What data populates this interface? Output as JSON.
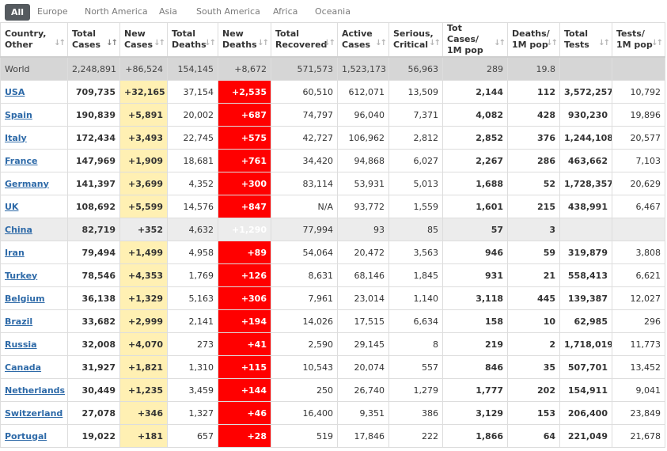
{
  "tabs": [
    "All",
    "Europe",
    "North America",
    "Asia",
    "South America",
    "Africa",
    "Oceania"
  ],
  "columns": [
    "Country,\nOther",
    "Total\nCases",
    "New\nCases",
    "Total\nDeaths",
    "New\nDeaths",
    "Total Recovered",
    "Active\nCases",
    "Serious,\nCritical",
    "Tot Cases/\n1M pop",
    "Deaths/\n1M pop",
    "Total\nTests",
    "Tests/\n1M pop"
  ],
  "sort_icon": "sort-arrows",
  "colors": {
    "new_cases_bg": "#fff0b3",
    "new_deaths_bg": "#ff0000",
    "world_bg": "#d6d6d6",
    "link": "#2e6aa8"
  },
  "rows": [
    [
      "World",
      "2,248,891",
      "+86,524",
      "154,145",
      "+8,672",
      "571,573",
      "1,523,173",
      "56,963",
      "289",
      "19.8",
      "",
      ""
    ],
    [
      "USA",
      "709,735",
      "+32,165",
      "37,154",
      "+2,535",
      "60,510",
      "612,071",
      "13,509",
      "2,144",
      "112",
      "3,572,257",
      "10,792"
    ],
    [
      "Spain",
      "190,839",
      "+5,891",
      "20,002",
      "+687",
      "74,797",
      "96,040",
      "7,371",
      "4,082",
      "428",
      "930,230",
      "19,896"
    ],
    [
      "Italy",
      "172,434",
      "+3,493",
      "22,745",
      "+575",
      "42,727",
      "106,962",
      "2,812",
      "2,852",
      "376",
      "1,244,108",
      "20,577"
    ],
    [
      "France",
      "147,969",
      "+1,909",
      "18,681",
      "+761",
      "34,420",
      "94,868",
      "6,027",
      "2,267",
      "286",
      "463,662",
      "7,103"
    ],
    [
      "Germany",
      "141,397",
      "+3,699",
      "4,352",
      "+300",
      "83,114",
      "53,931",
      "5,013",
      "1,688",
      "52",
      "1,728,357",
      "20,629"
    ],
    [
      "UK",
      "108,692",
      "+5,599",
      "14,576",
      "+847",
      "N/A",
      "93,772",
      "1,559",
      "1,601",
      "215",
      "438,991",
      "6,467"
    ],
    [
      "China",
      "82,719",
      "+352",
      "4,632",
      "+1,290",
      "77,994",
      "93",
      "85",
      "57",
      "3",
      "",
      ""
    ],
    [
      "Iran",
      "79,494",
      "+1,499",
      "4,958",
      "+89",
      "54,064",
      "20,472",
      "3,563",
      "946",
      "59",
      "319,879",
      "3,808"
    ],
    [
      "Turkey",
      "78,546",
      "+4,353",
      "1,769",
      "+126",
      "8,631",
      "68,146",
      "1,845",
      "931",
      "21",
      "558,413",
      "6,621"
    ],
    [
      "Belgium",
      "36,138",
      "+1,329",
      "5,163",
      "+306",
      "7,961",
      "23,014",
      "1,140",
      "3,118",
      "445",
      "139,387",
      "12,027"
    ],
    [
      "Brazil",
      "33,682",
      "+2,999",
      "2,141",
      "+194",
      "14,026",
      "17,515",
      "6,634",
      "158",
      "10",
      "62,985",
      "296"
    ],
    [
      "Russia",
      "32,008",
      "+4,070",
      "273",
      "+41",
      "2,590",
      "29,145",
      "8",
      "219",
      "2",
      "1,718,019",
      "11,773"
    ],
    [
      "Canada",
      "31,927",
      "+1,821",
      "1,310",
      "+115",
      "10,543",
      "20,074",
      "557",
      "846",
      "35",
      "507,701",
      "13,452"
    ],
    [
      "Netherlands",
      "30,449",
      "+1,235",
      "3,459",
      "+144",
      "250",
      "26,740",
      "1,279",
      "1,777",
      "202",
      "154,911",
      "9,041"
    ],
    [
      "Switzerland",
      "27,078",
      "+346",
      "1,327",
      "+46",
      "16,400",
      "9,351",
      "386",
      "3,129",
      "153",
      "206,400",
      "23,849"
    ],
    [
      "Portugal",
      "19,022",
      "+181",
      "657",
      "+28",
      "519",
      "17,846",
      "222",
      "1,866",
      "64",
      "221,049",
      "21,678"
    ]
  ]
}
